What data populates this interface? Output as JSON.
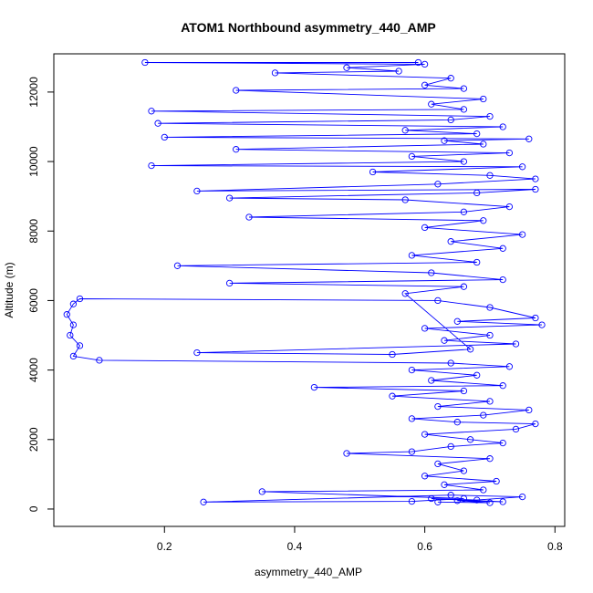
{
  "chart_data": {
    "type": "line",
    "title": "ATOM1 Northbound asymmetry_440_AMP",
    "xlabel": "asymmetry_440_AMP",
    "ylabel": "Altitude (m)",
    "xlim": [
      0.03,
      0.815
    ],
    "ylim": [
      -500,
      13100
    ],
    "x_ticks": [
      0.2,
      0.4,
      0.6,
      0.8
    ],
    "x_tick_labels": [
      "0.2",
      "0.4",
      "0.6",
      "0.8"
    ],
    "y_ticks": [
      0,
      2000,
      4000,
      6000,
      8000,
      10000,
      12000
    ],
    "y_tick_labels": [
      "0",
      "2000",
      "4000",
      "6000",
      "8000",
      "10000",
      "12000"
    ],
    "grid": false,
    "series": [
      {
        "color": "#0000ff",
        "marker": "open-circle",
        "line": true,
        "points": [
          [
            0.62,
            200
          ],
          [
            0.7,
            180
          ],
          [
            0.65,
            240
          ],
          [
            0.72,
            210
          ],
          [
            0.61,
            300
          ],
          [
            0.68,
            260
          ],
          [
            0.75,
            350
          ],
          [
            0.64,
            400
          ],
          [
            0.26,
            200
          ],
          [
            0.58,
            220
          ],
          [
            0.66,
            300
          ],
          [
            0.35,
            500
          ],
          [
            0.69,
            550
          ],
          [
            0.63,
            700
          ],
          [
            0.71,
            800
          ],
          [
            0.6,
            950
          ],
          [
            0.66,
            1100
          ],
          [
            0.62,
            1300
          ],
          [
            0.7,
            1450
          ],
          [
            0.48,
            1600
          ],
          [
            0.58,
            1650
          ],
          [
            0.64,
            1800
          ],
          [
            0.72,
            1900
          ],
          [
            0.67,
            2000
          ],
          [
            0.6,
            2150
          ],
          [
            0.74,
            2300
          ],
          [
            0.77,
            2450
          ],
          [
            0.65,
            2500
          ],
          [
            0.58,
            2600
          ],
          [
            0.69,
            2700
          ],
          [
            0.76,
            2850
          ],
          [
            0.62,
            2950
          ],
          [
            0.7,
            3100
          ],
          [
            0.55,
            3250
          ],
          [
            0.66,
            3400
          ],
          [
            0.43,
            3500
          ],
          [
            0.72,
            3550
          ],
          [
            0.61,
            3700
          ],
          [
            0.68,
            3850
          ],
          [
            0.58,
            4000
          ],
          [
            0.73,
            4100
          ],
          [
            0.64,
            4200
          ],
          [
            0.1,
            4280
          ],
          [
            0.06,
            4400
          ],
          [
            0.07,
            4700
          ],
          [
            0.055,
            5000
          ],
          [
            0.06,
            5300
          ],
          [
            0.05,
            5600
          ],
          [
            0.06,
            5900
          ],
          [
            0.07,
            6050
          ],
          [
            0.62,
            6000
          ],
          [
            0.7,
            5800
          ],
          [
            0.77,
            5500
          ],
          [
            0.65,
            5400
          ],
          [
            0.78,
            5300
          ],
          [
            0.6,
            5200
          ],
          [
            0.7,
            5000
          ],
          [
            0.63,
            4850
          ],
          [
            0.74,
            4750
          ],
          [
            0.25,
            4500
          ],
          [
            0.55,
            4450
          ],
          [
            0.67,
            4600
          ],
          [
            0.57,
            6200
          ],
          [
            0.66,
            6400
          ],
          [
            0.3,
            6500
          ],
          [
            0.72,
            6600
          ],
          [
            0.61,
            6800
          ],
          [
            0.22,
            7000
          ],
          [
            0.68,
            7100
          ],
          [
            0.58,
            7300
          ],
          [
            0.72,
            7500
          ],
          [
            0.64,
            7700
          ],
          [
            0.75,
            7900
          ],
          [
            0.6,
            8100
          ],
          [
            0.69,
            8300
          ],
          [
            0.33,
            8400
          ],
          [
            0.66,
            8550
          ],
          [
            0.73,
            8700
          ],
          [
            0.57,
            8900
          ],
          [
            0.3,
            8950
          ],
          [
            0.68,
            9100
          ],
          [
            0.77,
            9200
          ],
          [
            0.25,
            9150
          ],
          [
            0.62,
            9350
          ],
          [
            0.77,
            9500
          ],
          [
            0.7,
            9600
          ],
          [
            0.52,
            9700
          ],
          [
            0.75,
            9850
          ],
          [
            0.18,
            9880
          ],
          [
            0.66,
            10000
          ],
          [
            0.58,
            10150
          ],
          [
            0.73,
            10250
          ],
          [
            0.31,
            10350
          ],
          [
            0.69,
            10500
          ],
          [
            0.63,
            10600
          ],
          [
            0.76,
            10650
          ],
          [
            0.2,
            10700
          ],
          [
            0.68,
            10800
          ],
          [
            0.57,
            10900
          ],
          [
            0.72,
            11000
          ],
          [
            0.19,
            11100
          ],
          [
            0.64,
            11200
          ],
          [
            0.7,
            11300
          ],
          [
            0.18,
            11450
          ],
          [
            0.66,
            11500
          ],
          [
            0.61,
            11650
          ],
          [
            0.69,
            11800
          ],
          [
            0.31,
            12050
          ],
          [
            0.66,
            12100
          ],
          [
            0.6,
            12200
          ],
          [
            0.64,
            12400
          ],
          [
            0.37,
            12550
          ],
          [
            0.56,
            12600
          ],
          [
            0.48,
            12700
          ],
          [
            0.6,
            12800
          ],
          [
            0.17,
            12850
          ],
          [
            0.59,
            12850
          ]
        ]
      }
    ]
  }
}
